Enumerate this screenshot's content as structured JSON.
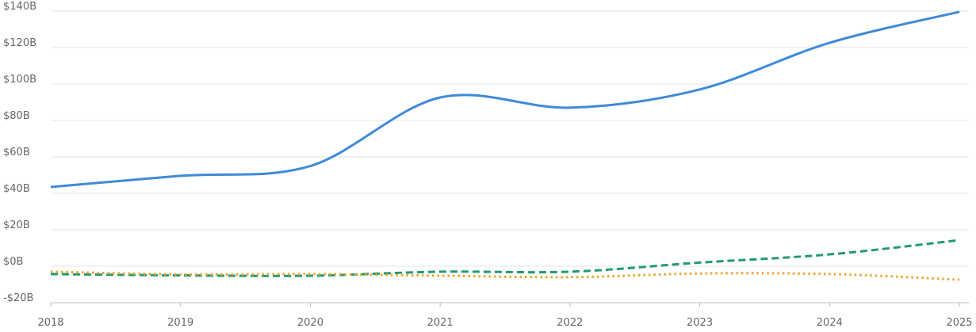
{
  "chart_data": {
    "type": "line",
    "x": [
      2018,
      2019,
      2020,
      2021,
      2022,
      2023,
      2024,
      2025
    ],
    "xlim": [
      2018,
      2025
    ],
    "xticks": [
      2018,
      2019,
      2020,
      2021,
      2022,
      2023,
      2024,
      2025
    ],
    "ylim": [
      -20,
      140
    ],
    "yticks": [
      {
        "value": -20,
        "label": "-$20B"
      },
      {
        "value": 0,
        "label": "$0B"
      },
      {
        "value": 20,
        "label": "$20B"
      },
      {
        "value": 40,
        "label": "$40B"
      },
      {
        "value": 60,
        "label": "$60B"
      },
      {
        "value": 80,
        "label": "$80B"
      },
      {
        "value": 100,
        "label": "$100B"
      },
      {
        "value": 120,
        "label": "$120B"
      },
      {
        "value": 140,
        "label": "$140B"
      }
    ],
    "grid": true,
    "series": [
      {
        "color": "#3f8ad8",
        "style": "solid",
        "values": [
          43.5,
          49.6,
          55,
          92.6,
          87,
          97,
          122.6,
          139.6
        ]
      },
      {
        "color": "#239a6e",
        "style": "dashed",
        "values": [
          -4.3,
          -5,
          -5.2,
          -3,
          -3,
          2,
          6.5,
          14.3
        ]
      },
      {
        "color": "#eaa52a",
        "style": "dotted",
        "values": [
          -3,
          -4.5,
          -4.3,
          -5.2,
          -6,
          -4,
          -4.3,
          -7.4
        ]
      }
    ]
  }
}
